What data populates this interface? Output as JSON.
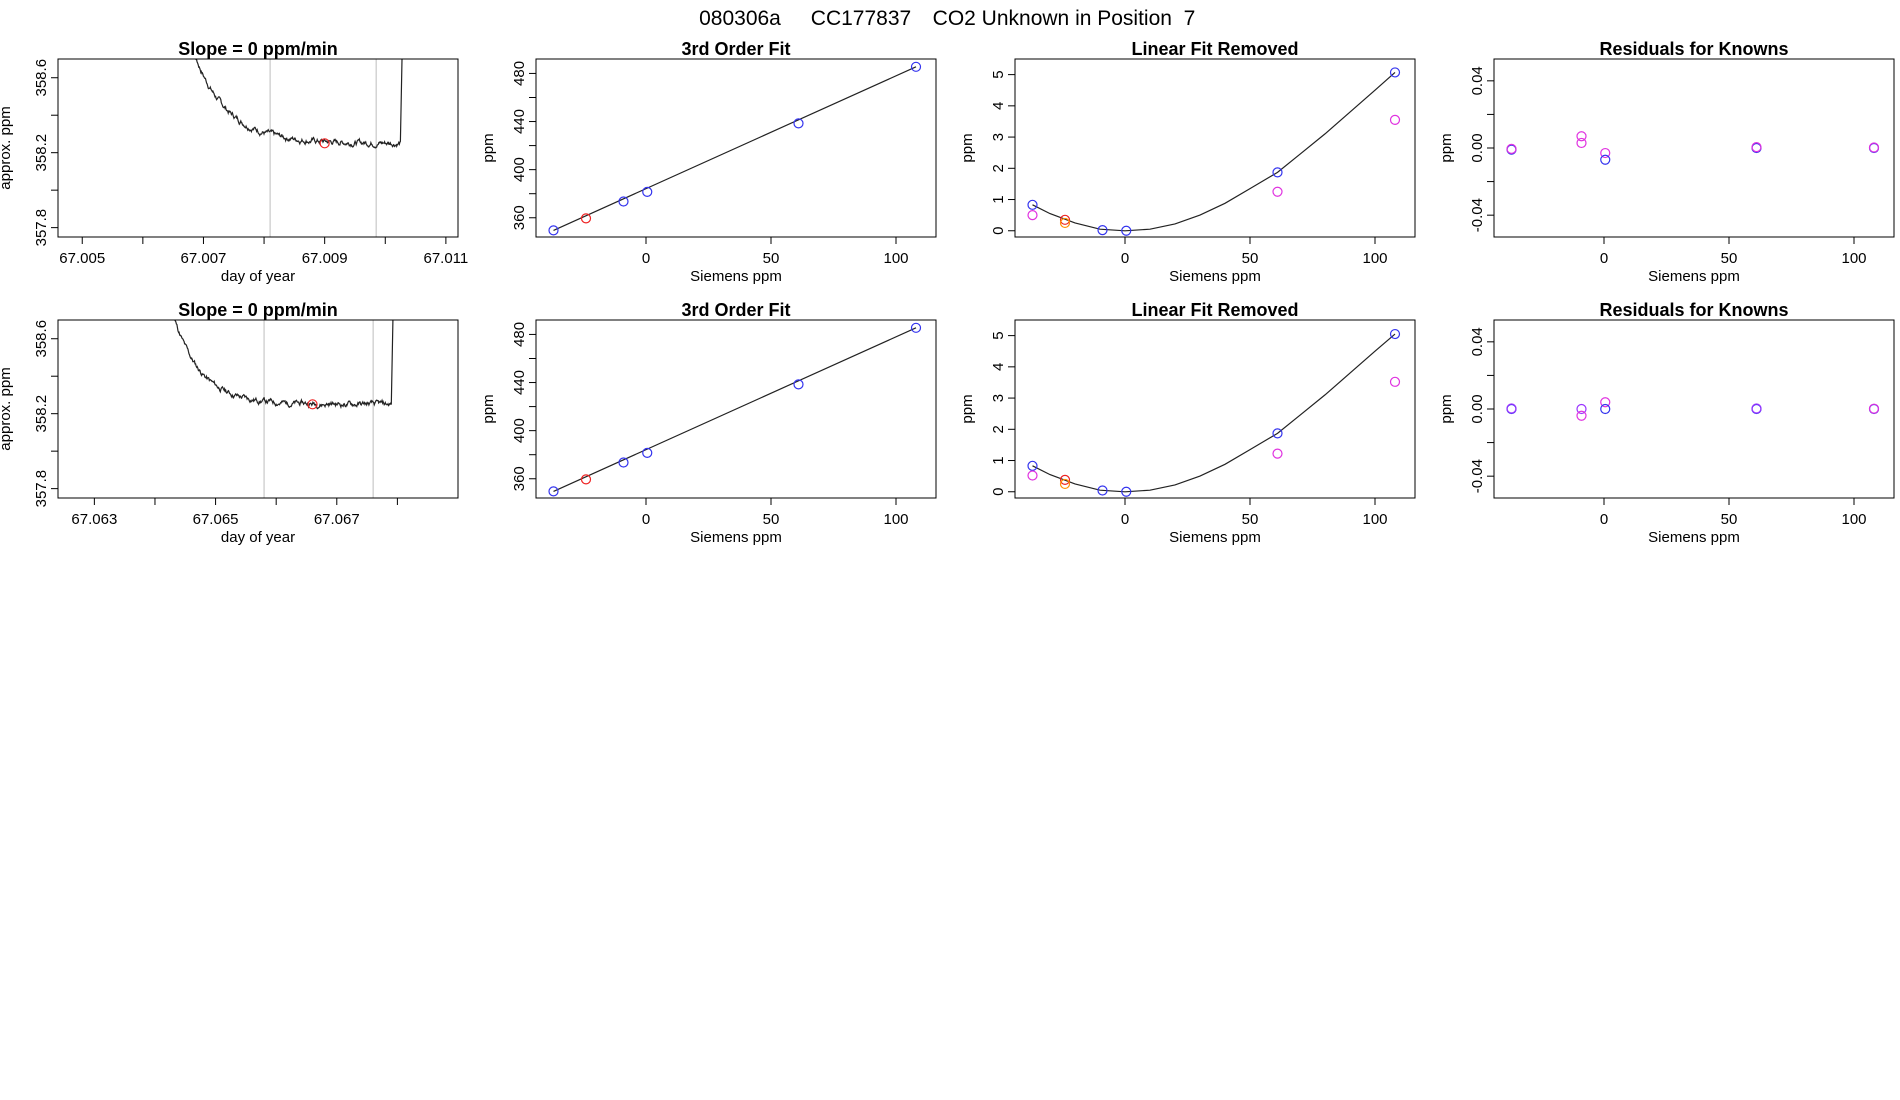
{
  "title": {
    "run_id": "080306a",
    "cylinder": "CC177837",
    "description": "CO2 Unknown in Position  7"
  },
  "colors": {
    "blue": "#3333ee",
    "red": "#ee2222",
    "orange": "#ff8c00",
    "magenta": "#e032e0",
    "purple": "#9933ff",
    "line": "#222222",
    "vline": "#c8c8c8"
  },
  "chart_data": [
    {
      "id": "row1-slope",
      "type": "line",
      "title": "Slope =  0  ppm/min",
      "xlabel": "day of year",
      "ylabel": "approx. ppm",
      "xlim": [
        67.0046,
        67.0112
      ],
      "ylim": [
        357.75,
        358.7
      ],
      "xticks": [
        67.005,
        67.006,
        67.007,
        67.008,
        67.009,
        67.01,
        67.011
      ],
      "xtick_labels": [
        "67.005",
        "",
        "67.007",
        "",
        "67.009",
        "",
        "67.011"
      ],
      "yticks": [
        357.8,
        358.0,
        358.2,
        358.4,
        358.6
      ],
      "ytick_labels": [
        "357.8",
        "",
        "358.2",
        "",
        "358.6"
      ],
      "series": [
        {
          "name": "trace",
          "start": 67.0066,
          "plateau": 358.25,
          "amp": 0.75,
          "decay": 0.00055,
          "end": 67.01025,
          "seed": 7
        }
      ],
      "vlines": [
        67.0081,
        67.00985
      ],
      "points": [
        {
          "x": 67.009,
          "y": 358.25,
          "color": "red"
        }
      ]
    },
    {
      "id": "row1-fit",
      "type": "scatter",
      "title": "3rd Order Fit",
      "xlabel": "Siemens ppm",
      "ylabel": "ppm",
      "xlim": [
        -44,
        116
      ],
      "ylim": [
        344,
        492
      ],
      "xticks": [
        0,
        50,
        100
      ],
      "xtick_labels": [
        "0",
        "50",
        "100"
      ],
      "yticks": [
        360,
        380,
        400,
        420,
        440,
        460,
        480
      ],
      "ytick_labels": [
        "360",
        "",
        "400",
        "",
        "440",
        "",
        "480"
      ],
      "series": [
        {
          "name": "fit line",
          "x": [
            -37,
            108
          ],
          "y": [
            349.5,
            485.5
          ]
        }
      ],
      "points": [
        {
          "x": -37,
          "y": 349.5,
          "color": "blue"
        },
        {
          "x": -24,
          "y": 359.5,
          "color": "red"
        },
        {
          "x": -9,
          "y": 373.5,
          "color": "blue"
        },
        {
          "x": 0.5,
          "y": 381.5,
          "color": "blue"
        },
        {
          "x": 61,
          "y": 438.5,
          "color": "blue"
        },
        {
          "x": 108,
          "y": 485.5,
          "color": "blue"
        }
      ]
    },
    {
      "id": "row1-linear",
      "type": "scatter",
      "title": "Linear Fit Removed",
      "xlabel": "Siemens ppm",
      "ylabel": "ppm",
      "xlim": [
        -44,
        116
      ],
      "ylim": [
        -0.2,
        5.5
      ],
      "xticks": [
        0,
        50,
        100
      ],
      "xtick_labels": [
        "0",
        "50",
        "100"
      ],
      "yticks": [
        0,
        1,
        2,
        3,
        4,
        5
      ],
      "ytick_labels": [
        "0",
        "1",
        "2",
        "3",
        "4",
        "5"
      ],
      "series": [
        {
          "name": "curve",
          "x": [
            -37,
            -30,
            -20,
            -10,
            0,
            10,
            20,
            30,
            40,
            50,
            61,
            70,
            80,
            90,
            100,
            108
          ],
          "y": [
            0.83,
            0.55,
            0.25,
            0.05,
            0.0,
            0.05,
            0.22,
            0.5,
            0.88,
            1.35,
            1.87,
            2.45,
            3.1,
            3.8,
            4.5,
            5.07
          ]
        }
      ],
      "points": [
        {
          "x": -37,
          "y": 0.83,
          "color": "blue"
        },
        {
          "x": -37,
          "y": 0.5,
          "color": "magenta"
        },
        {
          "x": -24,
          "y": 0.35,
          "color": "red"
        },
        {
          "x": -24,
          "y": 0.25,
          "color": "orange"
        },
        {
          "x": -9,
          "y": 0.02,
          "color": "blue"
        },
        {
          "x": 0.5,
          "y": 0.0,
          "color": "blue"
        },
        {
          "x": 61,
          "y": 1.87,
          "color": "blue"
        },
        {
          "x": 61,
          "y": 1.25,
          "color": "magenta"
        },
        {
          "x": 108,
          "y": 5.07,
          "color": "blue"
        },
        {
          "x": 108,
          "y": 3.55,
          "color": "magenta"
        }
      ]
    },
    {
      "id": "row1-resid",
      "type": "scatter",
      "title": "Residuals for Knowns",
      "xlabel": "Siemens ppm",
      "ylabel": "ppm",
      "xlim": [
        -44,
        116
      ],
      "ylim": [
        -0.053,
        0.053
      ],
      "xticks": [
        0,
        50,
        100
      ],
      "xtick_labels": [
        "0",
        "50",
        "100"
      ],
      "yticks": [
        -0.04,
        -0.02,
        0.0,
        0.02,
        0.04
      ],
      "ytick_labels": [
        "-0.04",
        "",
        "0.00",
        "",
        "0.04"
      ],
      "points": [
        {
          "x": -37,
          "y": -0.001,
          "color": "blue"
        },
        {
          "x": -37,
          "y": -0.0005,
          "color": "magenta"
        },
        {
          "x": -9,
          "y": 0.007,
          "color": "magenta"
        },
        {
          "x": -9,
          "y": 0.003,
          "color": "magenta"
        },
        {
          "x": 0.5,
          "y": -0.003,
          "color": "magenta"
        },
        {
          "x": 0.5,
          "y": -0.007,
          "color": "blue"
        },
        {
          "x": 61,
          "y": 0.0,
          "color": "blue"
        },
        {
          "x": 61,
          "y": 0.0005,
          "color": "magenta"
        },
        {
          "x": 108,
          "y": 0.0,
          "color": "blue"
        },
        {
          "x": 108,
          "y": 0.0003,
          "color": "magenta"
        }
      ]
    },
    {
      "id": "row2-slope",
      "type": "line",
      "title": "Slope =  0  ppm/min",
      "xlabel": "day of year",
      "ylabel": "approx. ppm",
      "xlim": [
        67.0624,
        67.069
      ],
      "ylim": [
        357.75,
        358.7
      ],
      "xticks": [
        67.063,
        67.064,
        67.065,
        67.066,
        67.067,
        67.068
      ],
      "xtick_labels": [
        "67.063",
        "",
        "67.065",
        "",
        "67.067",
        ""
      ],
      "yticks": [
        357.8,
        358.0,
        358.2,
        358.4,
        358.6
      ],
      "ytick_labels": [
        "357.8",
        "",
        "358.2",
        "",
        "358.6"
      ],
      "series": [
        {
          "name": "trace",
          "start": 67.0641,
          "plateau": 358.25,
          "amp": 0.75,
          "decay": 0.00045,
          "end": 67.0679,
          "seed": 11
        }
      ],
      "vlines": [
        67.0658,
        67.0676
      ],
      "points": [
        {
          "x": 67.0666,
          "y": 358.25,
          "color": "red"
        }
      ]
    },
    {
      "id": "row2-fit",
      "type": "scatter",
      "title": "3rd Order Fit",
      "xlabel": "Siemens ppm",
      "ylabel": "ppm",
      "xlim": [
        -44,
        116
      ],
      "ylim": [
        344,
        492
      ],
      "xticks": [
        0,
        50,
        100
      ],
      "xtick_labels": [
        "0",
        "50",
        "100"
      ],
      "yticks": [
        360,
        380,
        400,
        420,
        440,
        460,
        480
      ],
      "ytick_labels": [
        "360",
        "",
        "400",
        "",
        "440",
        "",
        "480"
      ],
      "series": [
        {
          "name": "fit line",
          "x": [
            -37,
            108
          ],
          "y": [
            349.5,
            485.5
          ]
        }
      ],
      "points": [
        {
          "x": -37,
          "y": 349.5,
          "color": "blue"
        },
        {
          "x": -24,
          "y": 359.5,
          "color": "red"
        },
        {
          "x": -9,
          "y": 373.5,
          "color": "blue"
        },
        {
          "x": 0.5,
          "y": 381.5,
          "color": "blue"
        },
        {
          "x": 61,
          "y": 438.5,
          "color": "blue"
        },
        {
          "x": 108,
          "y": 485.5,
          "color": "blue"
        }
      ]
    },
    {
      "id": "row2-linear",
      "type": "scatter",
      "title": "Linear Fit Removed",
      "xlabel": "Siemens ppm",
      "ylabel": "ppm",
      "xlim": [
        -44,
        116
      ],
      "ylim": [
        -0.2,
        5.5
      ],
      "xticks": [
        0,
        50,
        100
      ],
      "xtick_labels": [
        "0",
        "50",
        "100"
      ],
      "yticks": [
        0,
        1,
        2,
        3,
        4,
        5
      ],
      "ytick_labels": [
        "0",
        "1",
        "2",
        "3",
        "4",
        "5"
      ],
      "series": [
        {
          "name": "curve",
          "x": [
            -37,
            -30,
            -20,
            -10,
            0,
            10,
            20,
            30,
            40,
            50,
            61,
            70,
            80,
            90,
            100,
            108
          ],
          "y": [
            0.83,
            0.55,
            0.25,
            0.05,
            0.0,
            0.05,
            0.22,
            0.5,
            0.88,
            1.35,
            1.87,
            2.45,
            3.1,
            3.8,
            4.5,
            5.05
          ]
        }
      ],
      "points": [
        {
          "x": -37,
          "y": 0.83,
          "color": "blue"
        },
        {
          "x": -37,
          "y": 0.52,
          "color": "magenta"
        },
        {
          "x": -24,
          "y": 0.38,
          "color": "red"
        },
        {
          "x": -24,
          "y": 0.25,
          "color": "orange"
        },
        {
          "x": -9,
          "y": 0.04,
          "color": "blue"
        },
        {
          "x": 0.5,
          "y": 0.0,
          "color": "blue"
        },
        {
          "x": 61,
          "y": 1.87,
          "color": "blue"
        },
        {
          "x": 61,
          "y": 1.22,
          "color": "magenta"
        },
        {
          "x": 108,
          "y": 5.05,
          "color": "blue"
        },
        {
          "x": 108,
          "y": 3.52,
          "color": "magenta"
        }
      ]
    },
    {
      "id": "row2-resid",
      "type": "scatter",
      "title": "Residuals for Knowns",
      "xlabel": "Siemens ppm",
      "ylabel": "ppm",
      "xlim": [
        -44,
        116
      ],
      "ylim": [
        -0.053,
        0.053
      ],
      "xticks": [
        0,
        50,
        100
      ],
      "xtick_labels": [
        "0",
        "50",
        "100"
      ],
      "yticks": [
        -0.04,
        -0.02,
        0.0,
        0.02,
        0.04
      ],
      "ytick_labels": [
        "-0.04",
        "",
        "0.00",
        "",
        "0.04"
      ],
      "points": [
        {
          "x": -37,
          "y": 0.0,
          "color": "blue"
        },
        {
          "x": -37,
          "y": 0.0003,
          "color": "purple"
        },
        {
          "x": -9,
          "y": 0.0,
          "color": "purple"
        },
        {
          "x": -9,
          "y": -0.004,
          "color": "magenta"
        },
        {
          "x": 0.5,
          "y": 0.004,
          "color": "magenta"
        },
        {
          "x": 0.5,
          "y": 0.0,
          "color": "blue"
        },
        {
          "x": 61,
          "y": 0.0,
          "color": "blue"
        },
        {
          "x": 61,
          "y": 0.0003,
          "color": "purple"
        },
        {
          "x": 108,
          "y": 0.0,
          "color": "blue"
        },
        {
          "x": 108,
          "y": 0.0002,
          "color": "magenta"
        }
      ]
    }
  ]
}
